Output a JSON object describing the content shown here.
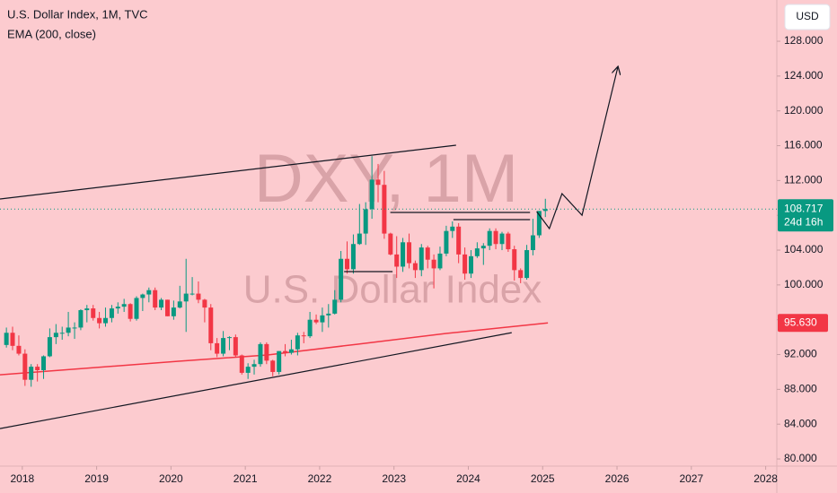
{
  "chart_data": {
    "type": "candlestick",
    "title": "U.S. Dollar Index, 1M, TVC",
    "watermark": "DXY, 1M",
    "watermark_subtitle": "U.S. Dollar Index",
    "currency": "USD",
    "countdown": "24d 16h",
    "up_color": "#089981",
    "down_color": "#f23645",
    "xlim": [
      2017.7,
      2028.15
    ],
    "xticks": [
      2018,
      2019,
      2020,
      2021,
      2022,
      2023,
      2024,
      2025,
      2026,
      2027,
      2028
    ],
    "ylim": [
      79.18,
      132.74
    ],
    "yticks": [
      {
        "value": 80,
        "label": "80.000"
      },
      {
        "value": 84,
        "label": "84.000"
      },
      {
        "value": 88,
        "label": "88.000"
      },
      {
        "value": 92,
        "label": "92.000"
      },
      {
        "value": 96,
        "label": "96.000"
      },
      {
        "value": 100,
        "label": "100.000"
      },
      {
        "value": 104,
        "label": "104.000"
      },
      {
        "value": 108,
        "label": "108.000"
      },
      {
        "value": 112,
        "label": "112.000"
      },
      {
        "value": 116,
        "label": "116.000"
      },
      {
        "value": 120,
        "label": "120.000"
      },
      {
        "value": 124,
        "label": "124.000"
      },
      {
        "value": 128,
        "label": "128.000"
      }
    ],
    "x": [
      2017.75,
      2017.833,
      2017.917,
      2018.0,
      2018.083,
      2018.167,
      2018.25,
      2018.333,
      2018.417,
      2018.5,
      2018.583,
      2018.667,
      2018.75,
      2018.833,
      2018.917,
      2019.0,
      2019.083,
      2019.167,
      2019.25,
      2019.333,
      2019.417,
      2019.5,
      2019.583,
      2019.667,
      2019.75,
      2019.833,
      2019.917,
      2020.0,
      2020.083,
      2020.167,
      2020.25,
      2020.333,
      2020.417,
      2020.5,
      2020.583,
      2020.667,
      2020.75,
      2020.833,
      2020.917,
      2021.0,
      2021.083,
      2021.167,
      2021.25,
      2021.333,
      2021.417,
      2021.5,
      2021.583,
      2021.667,
      2021.75,
      2021.833,
      2021.917,
      2022.0,
      2022.083,
      2022.167,
      2022.25,
      2022.333,
      2022.417,
      2022.5,
      2022.583,
      2022.667,
      2022.75,
      2022.833,
      2022.917,
      2023.0,
      2023.083,
      2023.167,
      2023.25,
      2023.333,
      2023.417,
      2023.5,
      2023.583,
      2023.667,
      2023.75,
      2023.833,
      2023.917,
      2024.0,
      2024.083,
      2024.167,
      2024.25,
      2024.333,
      2024.417,
      2024.5,
      2024.583,
      2024.667,
      2024.75,
      2024.833,
      2024.917,
      2025.0
    ],
    "open": [
      93.1,
      94.5,
      93.0,
      92.1,
      89.1,
      90.6,
      90.2,
      91.8,
      94.0,
      94.5,
      94.5,
      95.1,
      95.1,
      97.1,
      97.3,
      96.2,
      95.6,
      96.2,
      97.3,
      97.5,
      97.8,
      96.1,
      98.5,
      98.9,
      99.4,
      97.4,
      98.3,
      96.4,
      97.4,
      98.1,
      99.0,
      99.0,
      98.3,
      97.4,
      93.3,
      92.1,
      93.9,
      94.0,
      91.9,
      89.9,
      90.6,
      90.9,
      93.2,
      91.3,
      90.0,
      92.4,
      92.2,
      92.6,
      94.2,
      94.1,
      96.0,
      95.7,
      96.5,
      96.7,
      98.3,
      103.0,
      101.8,
      104.7,
      105.9,
      108.7,
      112.1,
      111.5,
      105.9,
      103.5,
      102.1,
      104.9,
      102.5,
      101.7,
      104.3,
      102.9,
      101.9,
      103.6,
      106.2,
      106.7,
      103.5,
      101.3,
      103.3,
      104.2,
      104.5,
      106.2,
      104.7,
      105.9,
      104.1,
      101.7,
      100.8,
      104.0,
      105.7,
      108.5
    ],
    "high": [
      95.1,
      95.2,
      94.2,
      92.6,
      90.9,
      90.9,
      91.9,
      95.0,
      95.5,
      95.2,
      96.9,
      95.7,
      97.2,
      97.7,
      97.7,
      96.9,
      97.4,
      97.7,
      98.0,
      98.4,
      97.9,
      98.7,
      99.0,
      99.7,
      99.7,
      98.5,
      98.3,
      98.2,
      99.9,
      103.0,
      100.9,
      100.4,
      98.4,
      97.8,
      93.9,
      94.7,
      94.1,
      94.3,
      92.0,
      91.0,
      91.4,
      93.4,
      93.4,
      91.4,
      92.4,
      93.2,
      93.7,
      94.5,
      94.6,
      96.9,
      96.6,
      97.4,
      97.8,
      99.4,
      103.9,
      105.0,
      105.8,
      109.3,
      109.5,
      114.8,
      113.9,
      113.1,
      106.0,
      105.6,
      105.4,
      105.9,
      102.8,
      104.7,
      104.5,
      103.5,
      104.4,
      106.8,
      107.3,
      107.1,
      104.3,
      104.0,
      104.9,
      104.8,
      106.5,
      106.5,
      106.1,
      106.1,
      104.5,
      101.9,
      104.6,
      107.6,
      108.5,
      109.9
    ],
    "low": [
      92.8,
      92.5,
      91.9,
      88.4,
      88.3,
      88.9,
      89.2,
      91.7,
      93.2,
      93.7,
      94.1,
      93.8,
      94.8,
      95.7,
      95.9,
      95.0,
      95.2,
      95.7,
      96.7,
      96.9,
      95.8,
      95.9,
      97.0,
      98.0,
      97.1,
      97.1,
      96.4,
      96.0,
      97.3,
      94.6,
      98.8,
      97.9,
      95.7,
      92.5,
      91.7,
      91.8,
      92.5,
      91.7,
      89.7,
      89.2,
      89.7,
      90.6,
      90.9,
      89.5,
      89.7,
      91.8,
      92.0,
      91.9,
      93.3,
      93.9,
      95.5,
      94.6,
      95.1,
      96.6,
      98.0,
      101.3,
      101.3,
      104.6,
      104.6,
      107.6,
      109.5,
      105.3,
      103.4,
      100.8,
      101.5,
      101.9,
      100.8,
      101.0,
      101.9,
      99.6,
      101.7,
      103.3,
      105.4,
      102.5,
      100.6,
      100.8,
      103.1,
      102.3,
      104.0,
      104.1,
      104.0,
      103.8,
      100.5,
      100.2,
      100.6,
      103.4,
      105.4,
      107.8
    ],
    "close": [
      94.5,
      93.0,
      92.1,
      89.1,
      90.6,
      90.2,
      91.8,
      94.0,
      94.5,
      94.5,
      95.1,
      95.1,
      97.1,
      97.3,
      96.2,
      95.6,
      96.2,
      97.3,
      97.5,
      97.8,
      96.1,
      98.5,
      98.9,
      99.4,
      97.4,
      98.3,
      96.4,
      97.4,
      98.1,
      99.0,
      99.0,
      98.3,
      97.4,
      93.3,
      92.1,
      93.9,
      94.0,
      91.9,
      89.9,
      90.6,
      90.9,
      93.2,
      91.3,
      90.0,
      92.4,
      92.2,
      92.6,
      94.2,
      94.1,
      96.0,
      95.7,
      96.5,
      96.7,
      98.3,
      103.0,
      101.8,
      104.7,
      105.9,
      108.7,
      112.1,
      111.5,
      105.9,
      103.5,
      102.1,
      104.9,
      102.5,
      101.7,
      104.3,
      102.9,
      101.9,
      103.6,
      106.2,
      106.7,
      103.5,
      101.3,
      103.3,
      104.2,
      104.5,
      106.2,
      104.7,
      105.9,
      104.1,
      101.7,
      100.8,
      104.0,
      105.7,
      108.5,
      108.717
    ],
    "ema": {
      "name": "EMA (200, close)",
      "color": "#f23645",
      "x": [
        2017.7,
        2020.1,
        2021.3,
        2022.5,
        2023.7,
        2025.07
      ],
      "values": [
        89.68,
        91.23,
        91.95,
        93.18,
        94.42,
        95.63
      ],
      "price_label": {
        "value": 95.63,
        "label": "95.630"
      }
    },
    "drawings": [
      {
        "x": [
          2017.7,
          2023.835
        ],
        "values": [
          109.87,
          116.05
        ]
      },
      {
        "x": [
          2017.7,
          2024.584
        ],
        "values": [
          83.5,
          94.52
        ]
      },
      {
        "x": [
          2022.95,
          2024.83
        ],
        "values": [
          108.33,
          108.33
        ]
      },
      {
        "x": [
          2023.8,
          2024.83
        ],
        "values": [
          107.5,
          107.5
        ]
      },
      {
        "x": [
          2022.33,
          2022.98
        ],
        "values": [
          101.53,
          101.53
        ]
      },
      {
        "x": [
          2024.92,
          2025.09,
          2025.26,
          2025.53,
          2026.01
        ],
        "values": [
          108.43,
          106.47,
          110.49,
          108.0,
          125.01
        ],
        "arrow": true
      }
    ]
  }
}
